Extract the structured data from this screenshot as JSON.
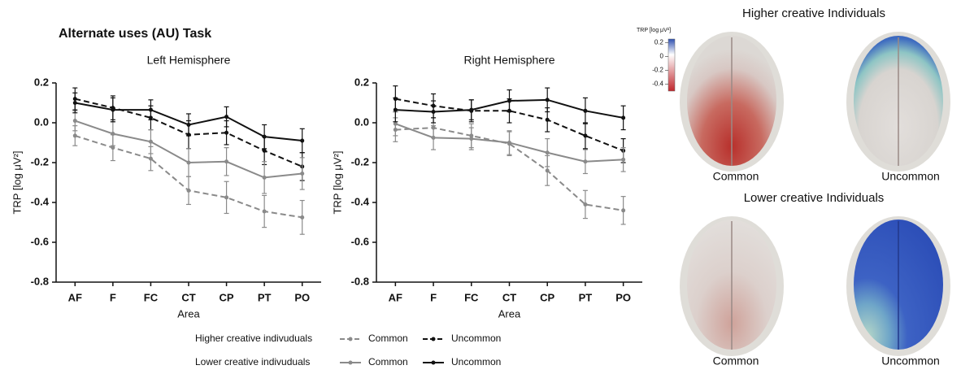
{
  "figure_title": "Alternate uses (AU) Task",
  "chart_data": [
    {
      "type": "line",
      "title": "Left Hemisphere",
      "x_label": "Area",
      "y_label": "TRP [log μV²]",
      "categories": [
        "AF",
        "F",
        "FC",
        "CT",
        "CP",
        "PT",
        "PO"
      ],
      "ylim": [
        -0.8,
        0.2
      ],
      "yticks": [
        0.2,
        {
          "value": 0,
          "label": "0.0"
        },
        -0.2,
        -0.4,
        -0.6,
        -0.8
      ],
      "legend_groups": [
        "Higher creative indivuduals",
        "Lower creative indivuduals"
      ],
      "series": [
        {
          "name": "Common",
          "color": "#8a8a8a",
          "dashed": true,
          "values": [
            -0.065,
            -0.125,
            -0.18,
            -0.34,
            -0.375,
            -0.445,
            -0.475
          ],
          "errors": [
            0.05,
            0.065,
            0.06,
            0.07,
            0.08,
            0.08,
            0.085
          ]
        },
        {
          "name": "Uncommon",
          "color": "#111111",
          "dashed": true,
          "values": [
            0.12,
            0.075,
            0.025,
            -0.06,
            -0.05,
            -0.14,
            -0.22
          ],
          "errors": [
            0.055,
            0.06,
            0.06,
            0.07,
            0.06,
            0.07,
            0.07
          ]
        },
        {
          "name": "Common",
          "color": "#8a8a8a",
          "dashed": false,
          "values": [
            0.01,
            -0.055,
            -0.095,
            -0.2,
            -0.195,
            -0.275,
            -0.255
          ],
          "errors": [
            0.05,
            0.06,
            0.06,
            0.07,
            0.07,
            0.08,
            0.08
          ]
        },
        {
          "name": "Uncommon",
          "color": "#111111",
          "dashed": false,
          "values": [
            0.1,
            0.065,
            0.065,
            -0.01,
            0.03,
            -0.07,
            -0.09
          ],
          "errors": [
            0.05,
            0.06,
            0.05,
            0.055,
            0.05,
            0.06,
            0.06
          ]
        }
      ]
    },
    {
      "type": "line",
      "title": "Right Hemisphere",
      "x_label": "Area",
      "y_label": "TRP [log μV²]",
      "categories": [
        "AF",
        "F",
        "FC",
        "CT",
        "CP",
        "PT",
        "PO"
      ],
      "ylim": [
        -0.8,
        0.2
      ],
      "yticks": [
        0.2,
        {
          "value": 0,
          "label": "0.0"
        },
        -0.2,
        -0.4,
        -0.6,
        -0.8
      ],
      "series": [
        {
          "color": "#8a8a8a",
          "dashed": true,
          "values": [
            -0.035,
            -0.025,
            -0.065,
            -0.105,
            -0.24,
            -0.41,
            -0.44
          ],
          "errors": [
            0.06,
            0.05,
            0.06,
            0.06,
            0.075,
            0.07,
            0.07
          ]
        },
        {
          "color": "#111111",
          "dashed": true,
          "values": [
            0.12,
            0.085,
            0.06,
            0.06,
            0.015,
            -0.065,
            -0.14
          ],
          "errors": [
            0.065,
            0.06,
            0.055,
            0.06,
            0.06,
            0.065,
            0.06
          ]
        },
        {
          "color": "#8a8a8a",
          "dashed": false,
          "values": [
            -0.005,
            -0.075,
            -0.08,
            -0.1,
            -0.15,
            -0.195,
            -0.185
          ],
          "errors": [
            0.06,
            0.06,
            0.055,
            0.06,
            0.07,
            0.06,
            0.06
          ]
        },
        {
          "color": "#111111",
          "dashed": false,
          "values": [
            0.065,
            0.055,
            0.065,
            0.11,
            0.115,
            0.06,
            0.025
          ],
          "errors": [
            0.06,
            0.055,
            0.05,
            0.055,
            0.06,
            0.065,
            0.06
          ]
        }
      ]
    }
  ],
  "brain_panel": {
    "titles": [
      "Higher creative Individuals",
      "Lower creative Individuals"
    ],
    "labels": [
      "Common",
      "Uncommon",
      "Common",
      "Uncommon"
    ],
    "colorbar": {
      "label": "TRP [log μV²]",
      "lim": [
        -0.5,
        0.25
      ],
      "ticks": [
        0.2,
        0,
        -0.2,
        -0.4
      ]
    }
  }
}
